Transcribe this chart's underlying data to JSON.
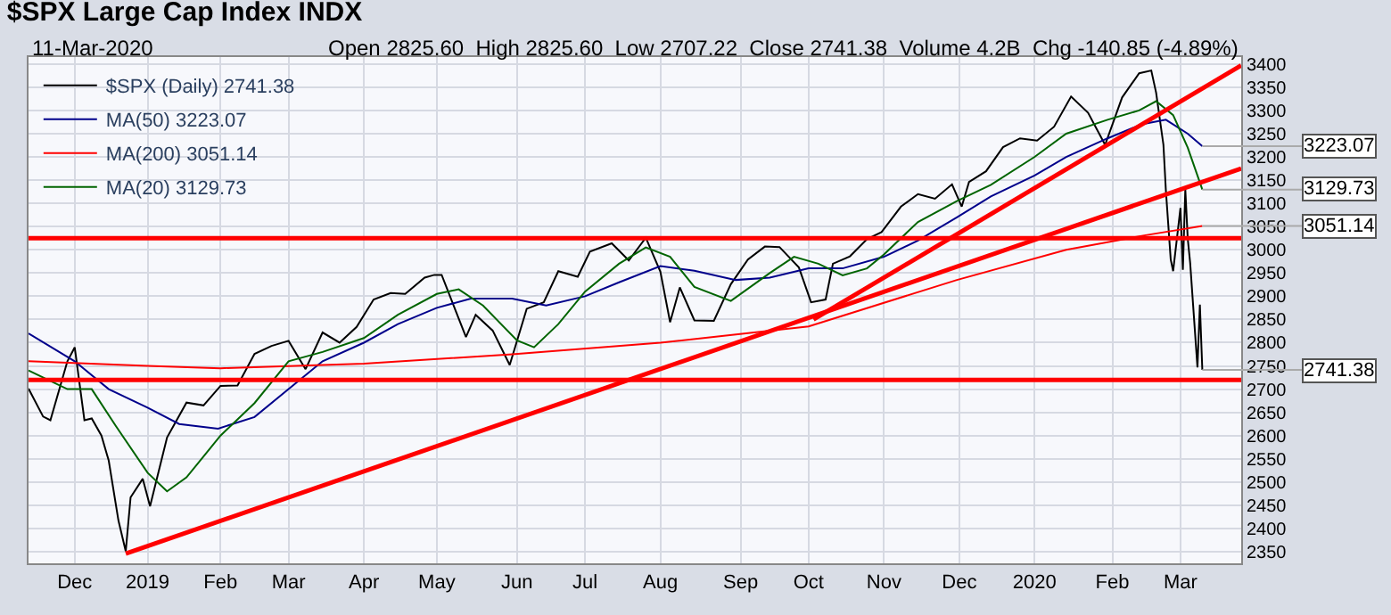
{
  "chart_data": {
    "type": "line",
    "title": "$SPX Large Cap Index INDX",
    "annotations": [
      "11-Mar-2020",
      "Open 2825.60  High 2825.60  Low 2707.22  Close 2741.38  Volume 4.2B  Chg -140.85 (-4.89%)",
      {
        "text": "3223.07",
        "x": "2020-03-11",
        "y": 3223.07
      },
      {
        "text": "3129.73",
        "x": "2020-03-11",
        "y": 3129.73
      },
      {
        "text": "3051.14",
        "x": "2020-03-11",
        "y": 3051.14
      },
      {
        "text": "2741.38",
        "x": "2020-03-11",
        "y": 2741.38
      }
    ],
    "xlim": [
      "2018-11-14",
      "2020-03-27"
    ],
    "ylim": [
      2325,
      3415
    ],
    "xticks": [
      {
        "value": "2018-12-03",
        "label": "Dec"
      },
      {
        "value": "2019-01-02",
        "label": "2019"
      },
      {
        "value": "2019-02-01",
        "label": "Feb"
      },
      {
        "value": "2019-03-01",
        "label": "Mar"
      },
      {
        "value": "2019-04-01",
        "label": "Apr"
      },
      {
        "value": "2019-05-01",
        "label": "May"
      },
      {
        "value": "2019-06-03",
        "label": "Jun"
      },
      {
        "value": "2019-07-01",
        "label": "Jul"
      },
      {
        "value": "2019-08-01",
        "label": "Aug"
      },
      {
        "value": "2019-09-03",
        "label": "Sep"
      },
      {
        "value": "2019-10-01",
        "label": "Oct"
      },
      {
        "value": "2019-11-01",
        "label": "Nov"
      },
      {
        "value": "2019-12-02",
        "label": "Dec"
      },
      {
        "value": "2020-01-02",
        "label": "2020"
      },
      {
        "value": "2020-02-03",
        "label": "Feb"
      },
      {
        "value": "2020-03-02",
        "label": "Mar"
      }
    ],
    "yticks": [
      2350,
      2400,
      2450,
      2500,
      2550,
      2600,
      2650,
      2700,
      2750,
      2800,
      2850,
      2900,
      2950,
      3000,
      3050,
      3100,
      3150,
      3200,
      3250,
      3300,
      3350,
      3400
    ],
    "grid": true,
    "legend": "top left",
    "ref_lines": [
      {
        "axis": "y",
        "value": 3025,
        "color": "#ff0000"
      },
      {
        "axis": "y",
        "value": 2720,
        "color": "#ff0000"
      }
    ],
    "series": [
      {
        "name": "$SPX (Daily) 2741.38",
        "color": "#000000",
        "x": [
          "2018-11-14",
          "2018-11-20",
          "2018-11-23",
          "2018-11-30",
          "2018-12-03",
          "2018-12-07",
          "2018-12-10",
          "2018-12-14",
          "2018-12-17",
          "2018-12-21",
          "2018-12-24",
          "2018-12-26",
          "2018-12-31",
          "2019-01-03",
          "2019-01-10",
          "2019-01-18",
          "2019-01-25",
          "2019-02-01",
          "2019-02-08",
          "2019-02-15",
          "2019-02-22",
          "2019-03-01",
          "2019-03-08",
          "2019-03-15",
          "2019-03-22",
          "2019-03-29",
          "2019-04-05",
          "2019-04-12",
          "2019-04-18",
          "2019-04-26",
          "2019-04-30",
          "2019-05-03",
          "2019-05-13",
          "2019-05-17",
          "2019-05-24",
          "2019-05-31",
          "2019-06-07",
          "2019-06-14",
          "2019-06-20",
          "2019-06-28",
          "2019-07-03",
          "2019-07-12",
          "2019-07-19",
          "2019-07-26",
          "2019-08-01",
          "2019-08-05",
          "2019-08-09",
          "2019-08-15",
          "2019-08-23",
          "2019-08-30",
          "2019-09-06",
          "2019-09-13",
          "2019-09-19",
          "2019-09-27",
          "2019-10-02",
          "2019-10-08",
          "2019-10-11",
          "2019-10-18",
          "2019-10-25",
          "2019-10-31",
          "2019-11-08",
          "2019-11-15",
          "2019-11-22",
          "2019-11-29",
          "2019-12-03",
          "2019-12-06",
          "2019-12-13",
          "2019-12-20",
          "2019-12-27",
          "2020-01-03",
          "2020-01-10",
          "2020-01-17",
          "2020-01-24",
          "2020-01-31",
          "2020-02-07",
          "2020-02-14",
          "2020-02-19",
          "2020-02-21",
          "2020-02-24",
          "2020-02-25",
          "2020-02-27",
          "2020-02-28",
          "2020-03-02",
          "2020-03-03",
          "2020-03-04",
          "2020-03-05",
          "2020-03-06",
          "2020-03-09",
          "2020-03-10",
          "2020-03-11"
        ],
        "values": [
          2701,
          2641,
          2633,
          2760,
          2790,
          2633,
          2637,
          2600,
          2546,
          2417,
          2351,
          2467,
          2507,
          2448,
          2596,
          2671,
          2665,
          2707,
          2708,
          2776,
          2793,
          2804,
          2743,
          2822,
          2800,
          2834,
          2893,
          2907,
          2905,
          2940,
          2946,
          2946,
          2812,
          2860,
          2826,
          2752,
          2873,
          2887,
          2954,
          2942,
          2996,
          3014,
          2977,
          3026,
          2953,
          2844,
          2919,
          2848,
          2847,
          2926,
          2979,
          3007,
          3006,
          2962,
          2887,
          2893,
          2970,
          2986,
          3023,
          3038,
          3093,
          3120,
          3110,
          3141,
          3093,
          3146,
          3169,
          3221,
          3240,
          3235,
          3265,
          3330,
          3295,
          3226,
          3328,
          3380,
          3386,
          3338,
          3226,
          3128,
          2979,
          2954,
          3090,
          2957,
          3130,
          3024,
          2972,
          2747,
          2882,
          2741.38
        ]
      },
      {
        "name": "MA(50) 3223.07",
        "color": "#00008b",
        "x": [
          "2018-11-14",
          "2018-12-03",
          "2018-12-17",
          "2019-01-02",
          "2019-01-15",
          "2019-01-31",
          "2019-02-15",
          "2019-03-01",
          "2019-03-15",
          "2019-04-01",
          "2019-04-15",
          "2019-05-01",
          "2019-05-15",
          "2019-06-01",
          "2019-06-15",
          "2019-07-01",
          "2019-07-15",
          "2019-08-01",
          "2019-08-15",
          "2019-09-01",
          "2019-09-15",
          "2019-10-01",
          "2019-10-15",
          "2019-11-01",
          "2019-11-15",
          "2019-12-01",
          "2019-12-15",
          "2020-01-02",
          "2020-01-15",
          "2020-02-01",
          "2020-02-15",
          "2020-02-25",
          "2020-03-05",
          "2020-03-11"
        ],
        "values": [
          2820,
          2760,
          2700,
          2660,
          2625,
          2615,
          2640,
          2700,
          2760,
          2800,
          2840,
          2875,
          2895,
          2895,
          2880,
          2900,
          2930,
          2965,
          2955,
          2935,
          2940,
          2960,
          2960,
          2985,
          3020,
          3070,
          3115,
          3160,
          3200,
          3240,
          3270,
          3280,
          3250,
          3223.07
        ]
      },
      {
        "name": "MA(200) 3051.14",
        "color": "#ff0000",
        "x": [
          "2018-11-14",
          "2019-01-02",
          "2019-02-01",
          "2019-04-01",
          "2019-06-01",
          "2019-08-01",
          "2019-10-01",
          "2019-12-01",
          "2020-01-15",
          "2020-02-15",
          "2020-03-11"
        ],
        "values": [
          2760,
          2750,
          2745,
          2755,
          2775,
          2800,
          2835,
          2935,
          3000,
          3030,
          3051.14
        ]
      },
      {
        "name": "MA(20) 3129.73",
        "color": "#006400",
        "x": [
          "2018-11-14",
          "2018-11-30",
          "2018-12-10",
          "2018-12-20",
          "2019-01-02",
          "2019-01-10",
          "2019-01-18",
          "2019-02-01",
          "2019-02-15",
          "2019-03-01",
          "2019-03-15",
          "2019-04-01",
          "2019-04-15",
          "2019-05-01",
          "2019-05-10",
          "2019-05-20",
          "2019-06-03",
          "2019-06-10",
          "2019-06-20",
          "2019-07-01",
          "2019-07-15",
          "2019-07-26",
          "2019-08-05",
          "2019-08-15",
          "2019-08-30",
          "2019-09-15",
          "2019-09-25",
          "2019-10-05",
          "2019-10-15",
          "2019-10-25",
          "2019-11-01",
          "2019-11-15",
          "2019-12-01",
          "2019-12-15",
          "2020-01-02",
          "2020-01-15",
          "2020-02-01",
          "2020-02-14",
          "2020-02-21",
          "2020-02-28",
          "2020-03-05",
          "2020-03-11"
        ],
        "values": [
          2740,
          2700,
          2700,
          2620,
          2520,
          2480,
          2510,
          2600,
          2670,
          2760,
          2780,
          2810,
          2860,
          2905,
          2915,
          2880,
          2805,
          2790,
          2840,
          2910,
          2970,
          3005,
          2985,
          2920,
          2890,
          2950,
          2985,
          2970,
          2945,
          2960,
          2990,
          3060,
          3105,
          3140,
          3200,
          3250,
          3280,
          3300,
          3320,
          3290,
          3220,
          3129.73
        ]
      },
      {
        "color": "#ff0000",
        "x": [
          "2018-12-24",
          "2020-03-27"
        ],
        "values": [
          2346,
          3175
        ]
      },
      {
        "color": "#ff0000",
        "x": [
          "2019-10-03",
          "2020-03-27"
        ],
        "values": [
          2850,
          3397
        ]
      }
    ]
  }
}
